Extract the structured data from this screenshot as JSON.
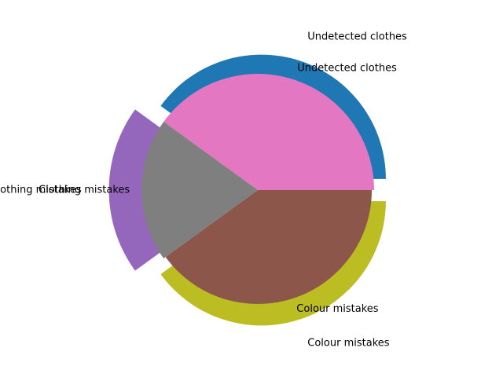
{
  "chart_data": [
    {
      "type": "pie",
      "title": "",
      "startangle": 0,
      "counterclock": true,
      "explode": 0.1,
      "slices": [
        {
          "label": "Undetected clothes",
          "value": 40,
          "color": "#1f77b4"
        },
        {
          "label": "Clothing mistakes",
          "value": 20,
          "color": "#9467bd"
        },
        {
          "label": "Colour mistakes",
          "value": 40,
          "color": "#bcbd22"
        }
      ]
    },
    {
      "type": "pie",
      "title": "",
      "startangle": 0,
      "counterclock": true,
      "explode": 0,
      "slices": [
        {
          "label": "Undetected clothes",
          "value": 40,
          "color": "#e377c2"
        },
        {
          "label": "Clothing mistakes",
          "value": 20,
          "color": "#7f7f7f"
        },
        {
          "label": "Colour mistakes",
          "value": 40,
          "color": "#8c564b",
          "note": ""
        }
      ]
    }
  ]
}
